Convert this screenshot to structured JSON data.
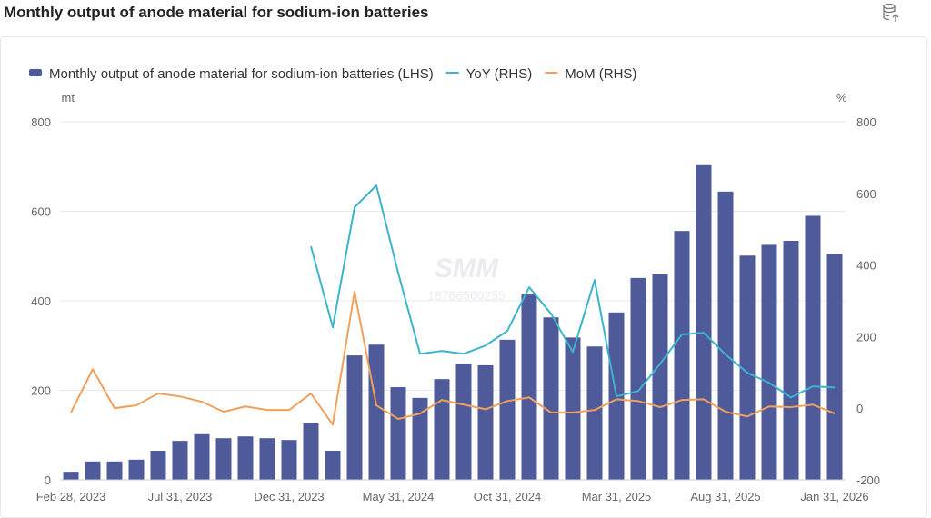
{
  "header": {
    "title": "Monthly output of anode material for sodium-ion batteries",
    "export_icon": "database-export-icon"
  },
  "watermark": {
    "logo": "SMM",
    "phone": "18766560255"
  },
  "colors": {
    "bar": "#4e5a9a",
    "yoy": "#3cb4cc",
    "mom": "#f0a05a",
    "grid": "#e8e8ee",
    "axis_text": "#666"
  },
  "chart_data": {
    "type": "bar+line",
    "title": "Monthly output of anode material for sodium-ion batteries",
    "left_axis": {
      "unit": "mt",
      "min": 0,
      "max": 800,
      "ticks": [
        0,
        200,
        400,
        600,
        800
      ],
      "tick_labels": [
        "0",
        "200",
        "400",
        "600",
        "800"
      ]
    },
    "right_axis": {
      "unit": "%",
      "min": -200,
      "max": 800,
      "ticks": [
        -200,
        0,
        200,
        400,
        600,
        800
      ],
      "tick_labels": [
        "-200",
        "0",
        "200",
        "400",
        "600",
        "800"
      ]
    },
    "x_tick_labels": [
      {
        "index": 0,
        "label": "Feb 28, 2023"
      },
      {
        "index": 5,
        "label": "Jul 31, 2023"
      },
      {
        "index": 10,
        "label": "Dec 31, 2023"
      },
      {
        "index": 15,
        "label": "May 31, 2024"
      },
      {
        "index": 20,
        "label": "Oct 31, 2024"
      },
      {
        "index": 25,
        "label": "Mar 31, 2025"
      },
      {
        "index": 30,
        "label": "Aug 31, 2025"
      },
      {
        "index": 35,
        "label": "Jan 31, 2026"
      }
    ],
    "categories": [
      "2023-02",
      "2023-03",
      "2023-04",
      "2023-05",
      "2023-06",
      "2023-07",
      "2023-08",
      "2023-09",
      "2023-10",
      "2023-11",
      "2023-12",
      "2024-01",
      "2024-02",
      "2024-03",
      "2024-04",
      "2024-05",
      "2024-06",
      "2024-07",
      "2024-08",
      "2024-09",
      "2024-10",
      "2024-11",
      "2024-12",
      "2025-01",
      "2025-02",
      "2025-03",
      "2025-04",
      "2025-05",
      "2025-06",
      "2025-07",
      "2025-08",
      "2025-09",
      "2025-10",
      "2025-11",
      "2025-12",
      "2026-01"
    ],
    "series": [
      {
        "name": "Monthly  output of anode material for sodium-ion batteries (LHS)",
        "type": "bar",
        "axis": "left",
        "values": [
          18,
          41,
          41,
          45,
          65,
          87,
          102,
          93,
          97,
          93,
          89,
          126,
          65,
          278,
          302,
          207,
          183,
          225,
          260,
          256,
          313,
          414,
          363,
          318,
          298,
          374,
          451,
          459,
          556,
          703,
          644,
          501,
          525,
          534,
          590,
          505
        ]
      },
      {
        "name": "YoY (RHS)",
        "type": "line",
        "axis": "right",
        "values": [
          null,
          null,
          null,
          null,
          null,
          null,
          null,
          null,
          null,
          null,
          null,
          452,
          226,
          561,
          622,
          378,
          152,
          160,
          152,
          175,
          216,
          338,
          264,
          157,
          358,
          33,
          48,
          124,
          206,
          211,
          150,
          99,
          71,
          30,
          61,
          58
        ]
      },
      {
        "name": "MoM (RHS)",
        "type": "line",
        "axis": "right",
        "values": [
          -12,
          109,
          0,
          8,
          41,
          33,
          18,
          -10,
          5,
          -5,
          -5,
          41,
          -46,
          325,
          8,
          -30,
          -15,
          23,
          10,
          -3,
          20,
          30,
          -12,
          -12,
          -5,
          25,
          20,
          3,
          23,
          25,
          -10,
          -23,
          5,
          3,
          10,
          -15
        ]
      }
    ],
    "legend_position": "top-left",
    "grid": true
  }
}
